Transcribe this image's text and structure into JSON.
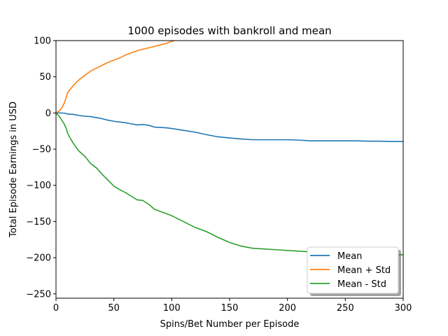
{
  "chart_data": {
    "type": "line",
    "title": "1000 episodes with bankroll and mean",
    "xlabel": "Spins/Bet Number per Episode",
    "ylabel": "Total Episode Earnings in USD",
    "xlim": [
      0,
      300
    ],
    "ylim": [
      -256,
      100
    ],
    "xticks": [
      0,
      50,
      100,
      150,
      200,
      250,
      300
    ],
    "yticks": [
      100,
      50,
      0,
      -50,
      -100,
      -150,
      -200,
      -250
    ],
    "xtick_labels": [
      "0",
      "50",
      "100",
      "150",
      "200",
      "250",
      "300"
    ],
    "ytick_labels": [
      "100",
      "50",
      "0",
      "−50",
      "−100",
      "−150",
      "−200",
      "−250"
    ],
    "grid": false,
    "legend_position": "bottom-right",
    "series": [
      {
        "name": "Mean",
        "color": "#1f77b4",
        "x": [
          0,
          5,
          8,
          10,
          15,
          20,
          25,
          30,
          35,
          40,
          45,
          50,
          55,
          60,
          65,
          70,
          75,
          80,
          85,
          90,
          95,
          100,
          110,
          120,
          130,
          140,
          150,
          160,
          170,
          180,
          190,
          200,
          210,
          220,
          230,
          240,
          250,
          260,
          270,
          280,
          290,
          300
        ],
        "y": [
          0,
          0,
          -0.5,
          -1.5,
          -2,
          -3.5,
          -4.5,
          -5,
          -6.5,
          -8,
          -10,
          -11.5,
          -12.5,
          -13.5,
          -15,
          -16.5,
          -16,
          -17,
          -19.5,
          -20,
          -20.5,
          -21.5,
          -24,
          -26.5,
          -30,
          -33,
          -34.5,
          -36,
          -37,
          -37,
          -37,
          -37,
          -37.5,
          -38.5,
          -38.5,
          -38.5,
          -38.5,
          -38.5,
          -39,
          -39,
          -39.5,
          -39.5
        ]
      },
      {
        "name": "Mean + Std",
        "color": "#ff7f0e",
        "x": [
          0,
          3,
          5,
          7,
          9,
          10,
          12,
          15,
          18,
          20,
          25,
          30,
          35,
          40,
          45,
          50,
          55,
          60,
          65,
          70,
          75,
          80,
          85,
          90,
          95,
          100,
          105
        ],
        "y": [
          0,
          3,
          7,
          13,
          22,
          28,
          32,
          38,
          43,
          46,
          52,
          58,
          62,
          66,
          70,
          73,
          76,
          80,
          83,
          86,
          88,
          90,
          92,
          94,
          96,
          99,
          101
        ]
      },
      {
        "name": "Mean - Std",
        "color": "#2ca02c",
        "x": [
          0,
          3,
          5,
          7,
          9,
          10,
          12,
          15,
          18,
          20,
          25,
          30,
          35,
          40,
          45,
          50,
          55,
          60,
          65,
          70,
          75,
          80,
          85,
          90,
          95,
          100,
          110,
          120,
          130,
          140,
          150,
          160,
          170,
          180,
          190,
          200,
          210,
          220,
          230,
          240,
          250,
          260,
          270,
          280,
          290,
          300
        ],
        "y": [
          0,
          -5,
          -10,
          -15,
          -22,
          -28,
          -34,
          -42,
          -49,
          -53,
          -60,
          -70,
          -76,
          -85,
          -93,
          -101,
          -106,
          -110,
          -115,
          -120,
          -121,
          -126,
          -133,
          -136,
          -139,
          -142,
          -150,
          -158,
          -164,
          -172,
          -179,
          -184,
          -187,
          -188,
          -189,
          -190,
          -191,
          -192,
          -193,
          -194,
          -195,
          -196,
          -196,
          -196,
          -196,
          -196
        ]
      }
    ]
  }
}
